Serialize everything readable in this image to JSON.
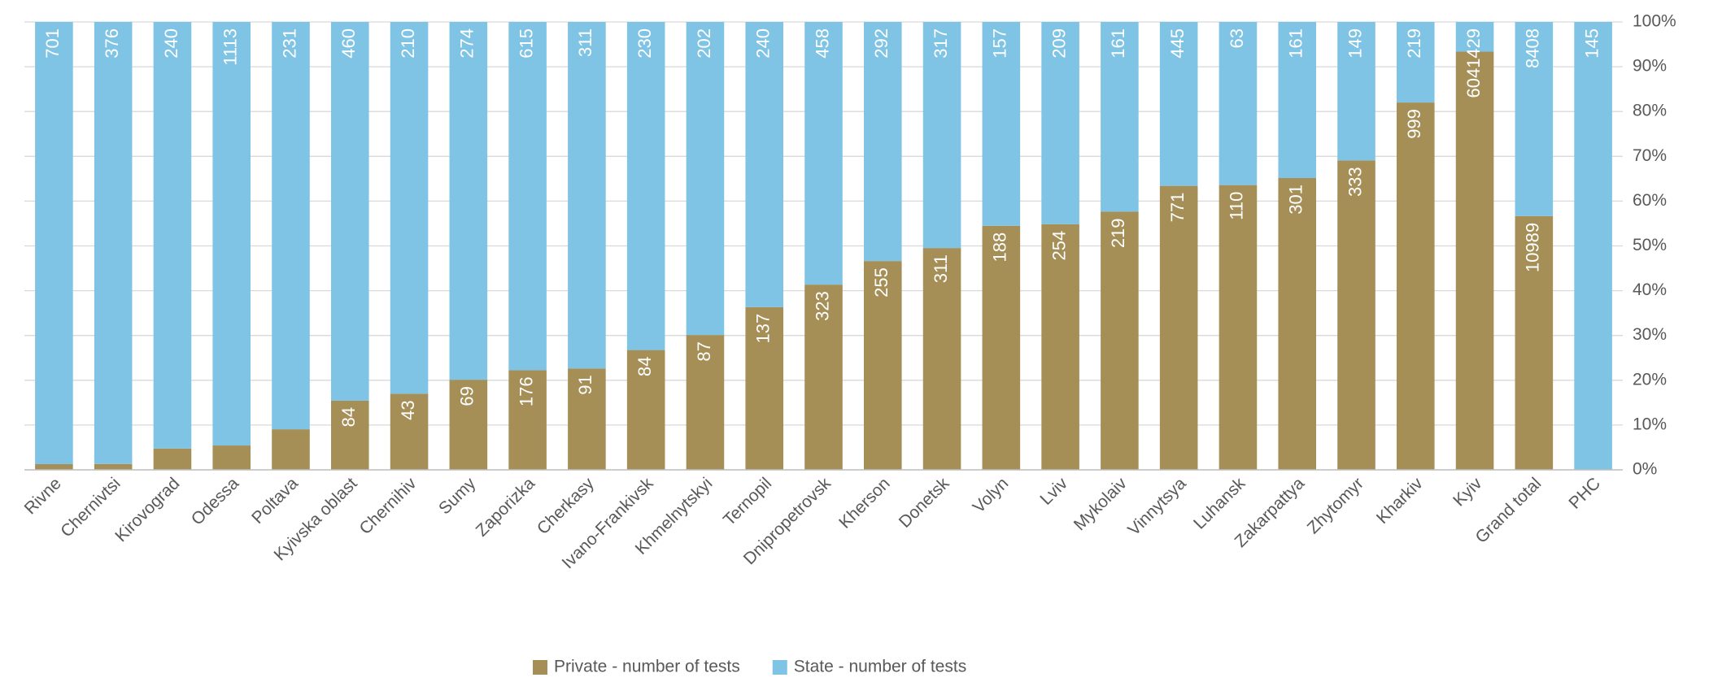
{
  "chart_data": {
    "type": "bar100",
    "categories": [
      "Rivne",
      "Chernivtsi",
      "Kirovograd",
      "Odessa",
      "Poltava",
      "Kyivska oblast",
      "Chernihiv",
      "Sumy",
      "Zaporizka",
      "Cherkasy",
      "Ivano-Frankivsk",
      "Khmelnytskyi",
      "Ternopil",
      "Dnipropetrovsk",
      "Kherson",
      "Donetsk",
      "Volyn",
      "Lviv",
      "Mykolaiv",
      "Vinnytsya",
      "Luhansk",
      "Zakarpattya",
      "Zhytomyr",
      "Kharkiv",
      "Kyiv",
      "Grand total",
      "PHC"
    ],
    "series": [
      {
        "name": "Private - number of tests",
        "color": "#a58f57",
        "values": [
          9,
          5,
          12,
          64,
          23,
          84,
          43,
          69,
          176,
          91,
          84,
          87,
          137,
          323,
          255,
          311,
          188,
          254,
          219,
          771,
          110,
          301,
          333,
          999,
          6041,
          10989,
          null
        ]
      },
      {
        "name": "State - number of tests",
        "color": "#7fc4e4",
        "values": [
          701,
          376,
          240,
          1113,
          231,
          460,
          210,
          274,
          615,
          311,
          230,
          202,
          240,
          458,
          292,
          317,
          157,
          209,
          161,
          445,
          63,
          161,
          149,
          219,
          429,
          8408,
          145
        ]
      }
    ],
    "ylim": [
      0,
      100
    ],
    "yticks": [
      {
        "value": 0,
        "label": "0%"
      },
      {
        "value": 10,
        "label": "10%"
      },
      {
        "value": 20,
        "label": "20%"
      },
      {
        "value": 30,
        "label": "30%"
      },
      {
        "value": 40,
        "label": "40%"
      },
      {
        "value": 50,
        "label": "50%"
      },
      {
        "value": 60,
        "label": "60%"
      },
      {
        "value": 70,
        "label": "70%"
      },
      {
        "value": 80,
        "label": "80%"
      },
      {
        "value": 90,
        "label": "90%"
      },
      {
        "value": 100,
        "label": "100%"
      }
    ],
    "grid": true,
    "legend": "bottom"
  }
}
